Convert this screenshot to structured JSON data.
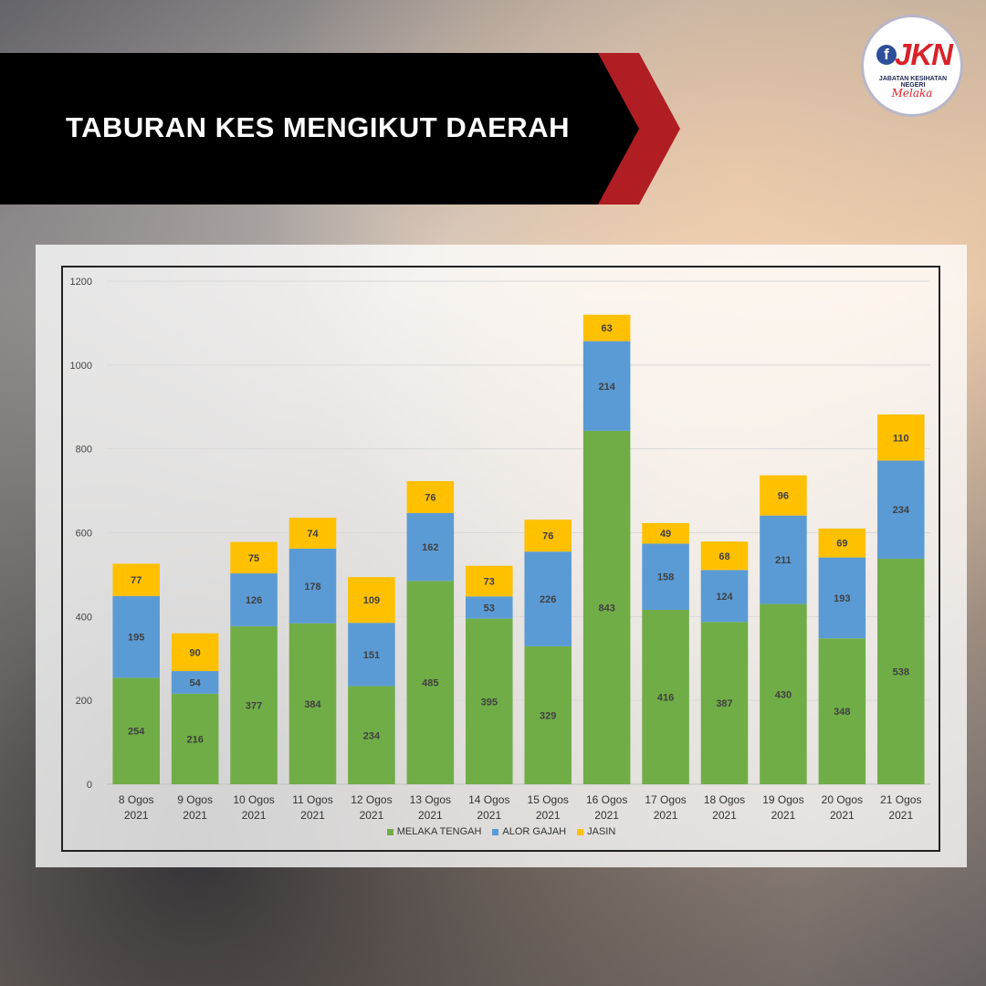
{
  "header": {
    "title": "TABURAN KES MENGIKUT DAERAH",
    "logo": {
      "mark_letter": "f",
      "mark_text": "JKN",
      "subtitle": "JABATAN KESIHATAN NEGERI",
      "script": "Melaka"
    }
  },
  "colors": {
    "banner": "#000000",
    "banner_arrow": "#b01e23",
    "melaka_tengah": "#70ad47",
    "alor_gajah": "#5b9bd5",
    "jasin": "#ffc000"
  },
  "chart_data": {
    "type": "bar",
    "stacked": true,
    "title": "",
    "xlabel": "",
    "ylabel": "",
    "ylim": [
      0,
      1200
    ],
    "yticks": [
      0,
      200,
      400,
      600,
      800,
      1000,
      1200
    ],
    "grid": true,
    "legend_position": "bottom",
    "categories": [
      [
        "8 Ogos",
        "2021"
      ],
      [
        "9 Ogos",
        "2021"
      ],
      [
        "10 Ogos",
        "2021"
      ],
      [
        "11 Ogos",
        "2021"
      ],
      [
        "12 Ogos",
        "2021"
      ],
      [
        "13 Ogos",
        "2021"
      ],
      [
        "14 Ogos",
        "2021"
      ],
      [
        "15 Ogos",
        "2021"
      ],
      [
        "16 Ogos",
        "2021"
      ],
      [
        "17 Ogos",
        "2021"
      ],
      [
        "18 Ogos",
        "2021"
      ],
      [
        "19 Ogos",
        "2021"
      ],
      [
        "20 Ogos",
        "2021"
      ],
      [
        "21 Ogos",
        "2021"
      ]
    ],
    "series": [
      {
        "name": "MELAKA TENGAH",
        "color": "#70ad47",
        "values": [
          254,
          216,
          377,
          384,
          234,
          485,
          395,
          329,
          843,
          416,
          387,
          430,
          348,
          538
        ]
      },
      {
        "name": "ALOR GAJAH",
        "color": "#5b9bd5",
        "values": [
          195,
          54,
          126,
          178,
          151,
          162,
          53,
          226,
          214,
          158,
          124,
          211,
          193,
          234
        ]
      },
      {
        "name": "JASIN",
        "color": "#ffc000",
        "values": [
          77,
          90,
          75,
          74,
          109,
          76,
          73,
          76,
          63,
          49,
          68,
          96,
          69,
          110
        ]
      }
    ]
  }
}
